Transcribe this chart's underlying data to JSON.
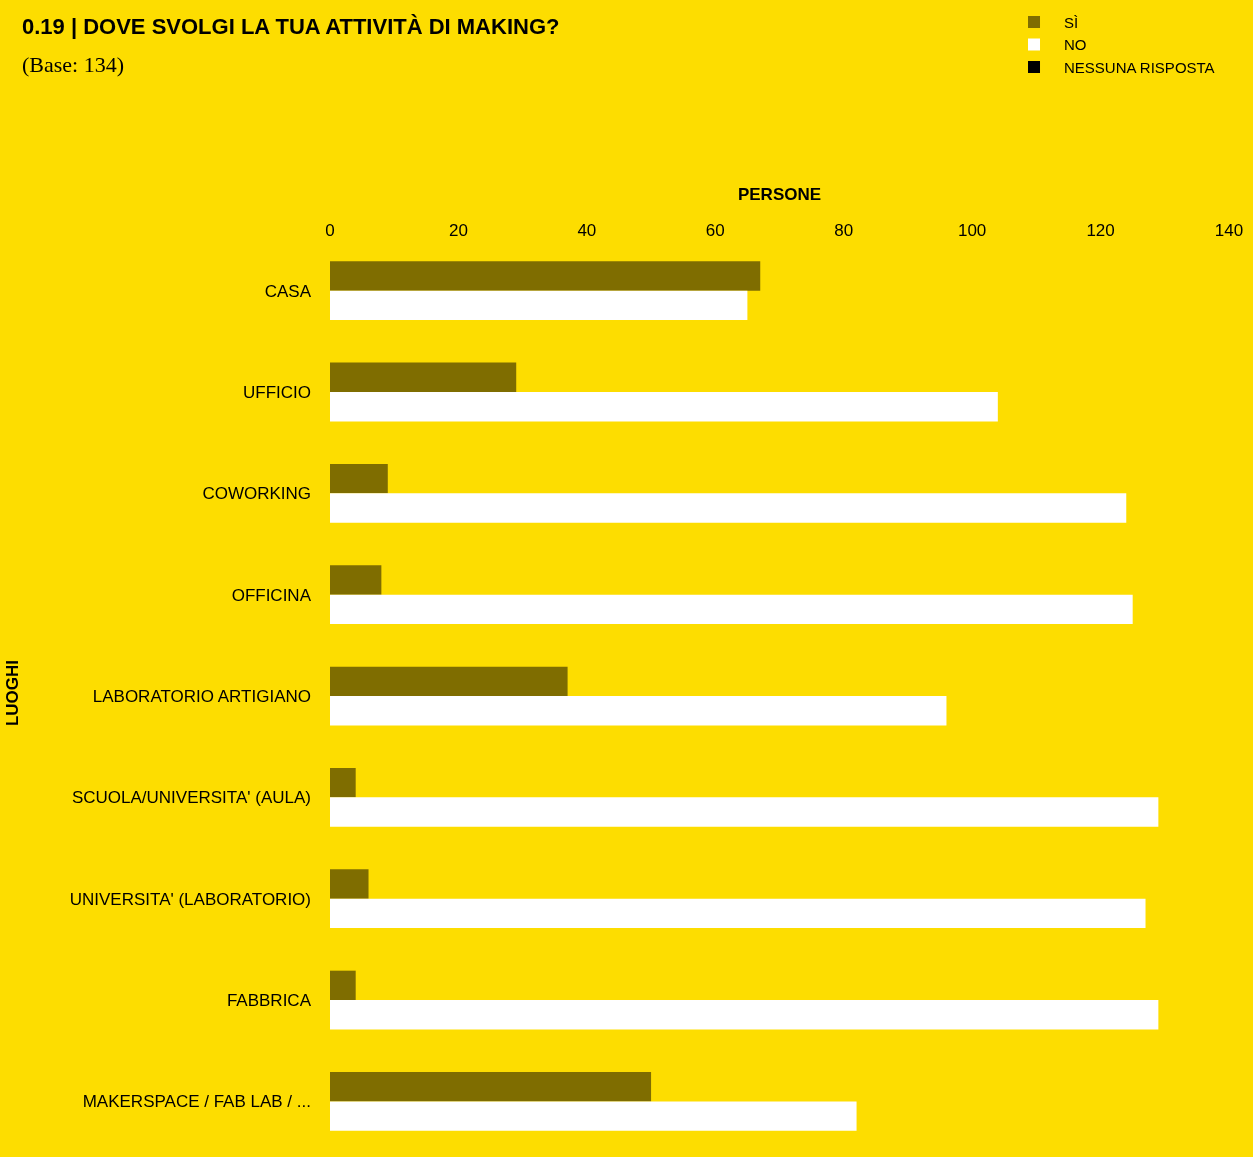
{
  "chart_data": {
    "type": "bar",
    "orientation": "horizontal",
    "title": "0.19 | DOVE SVOLGI LA TUA ATTIVITÀ DI MAKING?",
    "subtitle": "(Base: 134)",
    "xlabel": "PERSONE",
    "ylabel": "LUOGHI",
    "categories": [
      "CASA",
      "UFFICIO",
      "COWORKING",
      "OFFICINA",
      "LABORATORIO ARTIGIANO",
      "SCUOLA/UNIVERSITA' (AULA)",
      "UNIVERSITA' (LABORATORIO)",
      "FABBRICA",
      "MAKERSPACE / FAB LAB / ..."
    ],
    "series": [
      {
        "name": "SÌ",
        "color": "#7f6d00",
        "values": [
          67,
          29,
          9,
          8,
          37,
          4,
          6,
          4,
          50
        ]
      },
      {
        "name": "NO",
        "color": "#ffffff",
        "values": [
          65,
          104,
          124,
          125,
          96,
          129,
          127,
          129,
          82
        ]
      },
      {
        "name": "NESSUNA RISPOSTA",
        "color": "#000000",
        "values": [
          null,
          null,
          null,
          null,
          null,
          null,
          null,
          null,
          null
        ]
      }
    ],
    "xlim": [
      0,
      140
    ],
    "xticks": [
      0,
      20,
      40,
      60,
      80,
      100,
      120,
      140
    ],
    "grid": false,
    "legend": "top right"
  }
}
